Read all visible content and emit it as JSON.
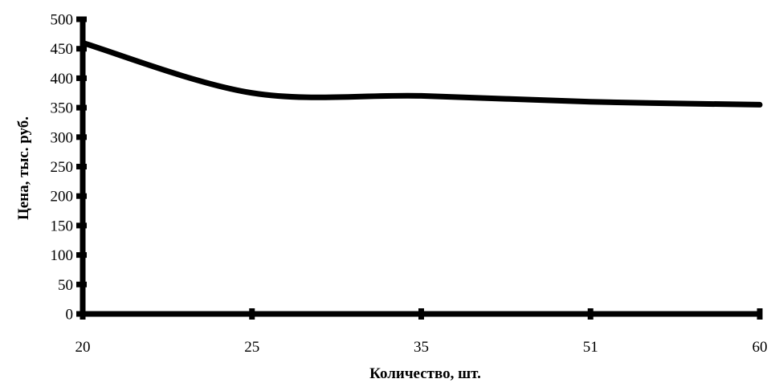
{
  "chart_data": {
    "type": "line",
    "title": "",
    "xlabel": "Количество, шт.",
    "ylabel": "Цена, тыс. руб.",
    "categories": [
      "20",
      "25",
      "35",
      "51",
      "60"
    ],
    "series": [
      {
        "values": [
          460,
          375,
          370,
          360,
          355
        ]
      }
    ],
    "ylim": [
      0,
      500
    ],
    "yticks": [
      0,
      50,
      100,
      150,
      200,
      250,
      300,
      350,
      400,
      450,
      500
    ],
    "grid": false,
    "legend": "none",
    "line_color": "#000000",
    "smooth": true
  }
}
